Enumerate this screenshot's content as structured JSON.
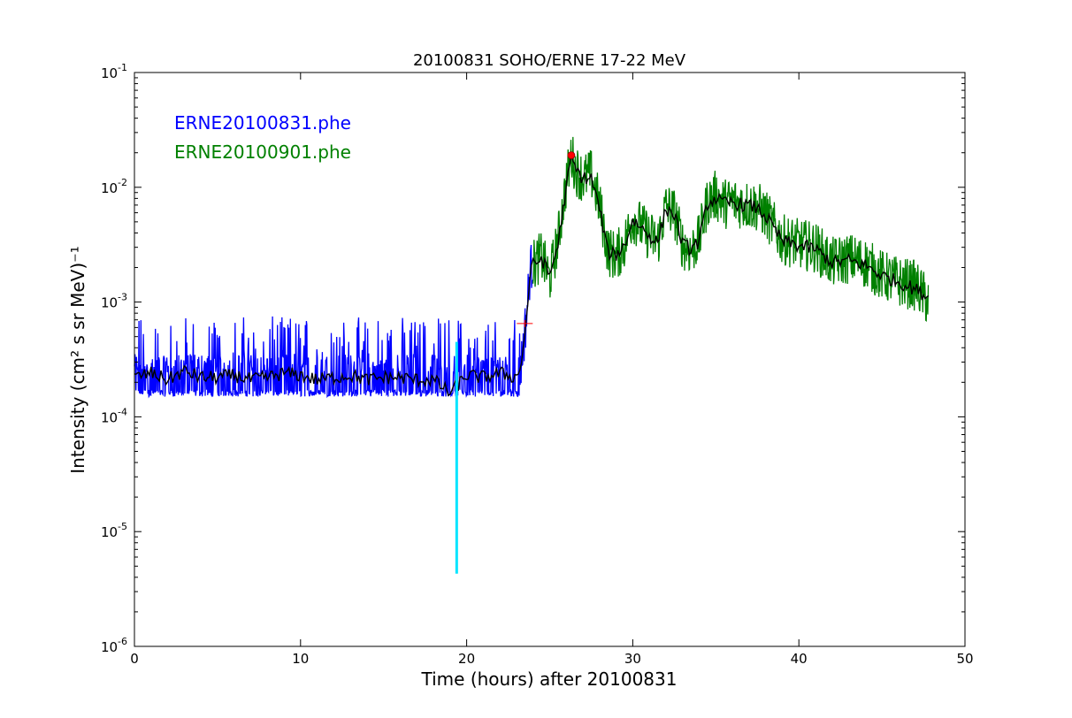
{
  "chart_data": {
    "type": "line",
    "title": "20100831 SOHO/ERNE 17-22 MeV",
    "xlabel": "Time (hours) after 20100831",
    "ylabel": "Intensity (cm²  s sr MeV)⁻¹",
    "xlim": [
      0,
      50
    ],
    "ylim": [
      1e-06,
      0.1
    ],
    "yscale": "log",
    "grid": false,
    "x_ticks": [
      "0",
      "10",
      "20",
      "30",
      "40",
      "50"
    ],
    "y_ticks": [
      {
        "base": "10",
        "exp": "-6"
      },
      {
        "base": "10",
        "exp": "-5"
      },
      {
        "base": "10",
        "exp": "-4"
      },
      {
        "base": "10",
        "exp": "-3"
      },
      {
        "base": "10",
        "exp": "-2"
      },
      {
        "base": "10",
        "exp": "-1"
      }
    ],
    "legend_placement": "top-left",
    "legend": [
      {
        "text": "ERNE20100831.phe",
        "color": "#0000ff"
      },
      {
        "text": "ERNE20100901.phe",
        "color": "#008000"
      }
    ],
    "series": [
      {
        "name": "ERNE20100831.phe",
        "color": "#0000ff",
        "style": "noisy",
        "x": [
          0,
          1,
          2,
          3,
          4,
          5,
          6,
          7,
          8,
          9,
          10,
          11,
          12,
          13,
          14,
          15,
          16,
          17,
          18,
          19,
          20,
          21,
          22,
          23,
          23.3,
          23.6,
          23.8,
          24.0
        ],
        "y": [
          0.00022,
          0.00022,
          0.00021,
          0.00022,
          0.00022,
          0.00021,
          0.00022,
          0.00022,
          0.00021,
          0.00022,
          0.00022,
          0.00021,
          0.00022,
          0.00022,
          0.00021,
          0.00021,
          0.00022,
          0.00021,
          0.00022,
          0.00021,
          0.00022,
          0.00021,
          0.00022,
          0.00022,
          0.0003,
          0.00075,
          0.0018,
          0.0023
        ],
        "min": 0.00015,
        "max_spike": 0.00075
      },
      {
        "name": "ERNE20100901.phe",
        "color": "#008000",
        "style": "noisy",
        "x": [
          24.0,
          24.5,
          25.0,
          25.5,
          26.0,
          26.3,
          26.6,
          27.0,
          27.5,
          28.0,
          28.5,
          29.0,
          29.5,
          30.0,
          30.5,
          31.0,
          31.5,
          32.0,
          32.5,
          33.0,
          33.5,
          34.0,
          34.5,
          35.0,
          35.5,
          36.0,
          36.5,
          37.0,
          37.5,
          38.0,
          39.0,
          40.0,
          41.0,
          42.0,
          43.0,
          44.0,
          45.0,
          46.0,
          47.0,
          47.8
        ],
        "y": [
          0.0021,
          0.0025,
          0.0016,
          0.0035,
          0.011,
          0.019,
          0.014,
          0.012,
          0.013,
          0.007,
          0.0028,
          0.0025,
          0.0032,
          0.0055,
          0.0045,
          0.0038,
          0.0033,
          0.0068,
          0.006,
          0.0032,
          0.0028,
          0.0035,
          0.0075,
          0.0085,
          0.0072,
          0.0075,
          0.0072,
          0.007,
          0.0068,
          0.0058,
          0.0035,
          0.0032,
          0.003,
          0.0022,
          0.0024,
          0.0022,
          0.0017,
          0.0015,
          0.0014,
          0.001
        ]
      },
      {
        "name": "",
        "color": "#000000",
        "style": "smooth",
        "x": [
          0,
          1,
          2,
          3,
          4,
          5,
          6,
          7,
          8,
          9,
          10,
          11,
          12,
          13,
          14,
          15,
          16,
          17,
          18,
          19,
          20,
          21,
          22,
          23,
          23.3,
          23.6,
          23.8,
          24.0,
          24.5,
          25.0,
          25.5,
          26.0,
          26.3,
          26.6,
          27.0,
          27.5,
          28.0,
          28.5,
          29.0,
          29.5,
          30.0,
          30.5,
          31.0,
          31.5,
          32.0,
          32.5,
          33.0,
          33.5,
          34.0,
          34.5,
          35.0,
          35.5,
          36.0,
          36.5,
          37.0,
          37.5,
          38.0,
          39.0,
          40.0,
          41.0,
          42.0,
          43.0,
          44.0,
          45.0,
          46.0,
          47.0,
          47.8
        ],
        "y": [
          0.00022,
          0.00024,
          0.00021,
          0.00025,
          0.00022,
          0.00022,
          0.00023,
          0.00021,
          0.00022,
          0.00024,
          0.00023,
          0.00021,
          0.00022,
          0.00023,
          0.00021,
          0.00022,
          0.00022,
          0.00021,
          0.00021,
          0.00016,
          0.00023,
          0.00022,
          0.00024,
          0.00022,
          0.0003,
          0.0007,
          0.0017,
          0.0021,
          0.0024,
          0.0017,
          0.0032,
          0.01,
          0.018,
          0.014,
          0.012,
          0.012,
          0.0065,
          0.0027,
          0.0026,
          0.0031,
          0.0052,
          0.0045,
          0.0038,
          0.0033,
          0.0065,
          0.0058,
          0.0032,
          0.0029,
          0.0034,
          0.0072,
          0.008,
          0.0072,
          0.0074,
          0.0071,
          0.0069,
          0.0066,
          0.0056,
          0.0034,
          0.0031,
          0.0029,
          0.0022,
          0.0023,
          0.0021,
          0.0017,
          0.0015,
          0.0013,
          0.0011
        ]
      }
    ],
    "markers": [
      {
        "type": "vline",
        "x": 19.4,
        "y_from": 4.3e-06,
        "y_to": 0.00045,
        "color": "#00e5ff"
      },
      {
        "type": "cross",
        "x": 23.5,
        "y": 0.00065,
        "color": "#ff0000"
      },
      {
        "type": "dot",
        "x": 26.3,
        "y": 0.019,
        "color": "#ff0000"
      }
    ]
  }
}
